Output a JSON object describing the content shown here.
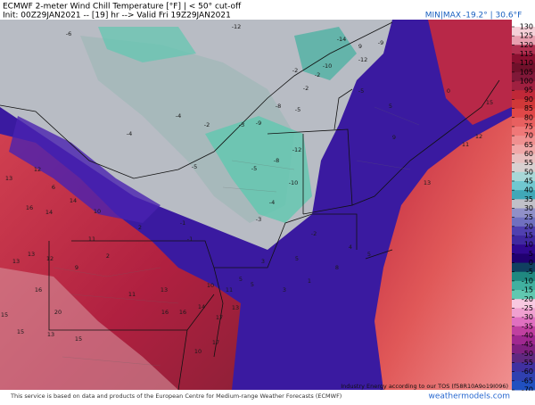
{
  "header": {
    "title": "ECMWF 2-meter Wind Chill Temperature [°F] | < 50° cut-off",
    "init": "Init: 00Z29JAN2021 -- [19] hr --> Valid Fri 19Z29JAN2021",
    "minmax_label": "MIN|MAX",
    "minmax_values": "-19.2° | 30.6°F"
  },
  "map": {
    "labels": [
      "-12",
      "-14",
      "-6",
      "9",
      "-12",
      "-9",
      "-10",
      "-2",
      "-2",
      "-2",
      "-5",
      "0",
      "15",
      "5",
      "-8",
      "-5",
      "-9",
      "-4",
      "-4",
      "-2",
      "-3",
      "-12",
      "-8",
      "-10",
      "-5",
      "-5",
      "9",
      "12",
      "11",
      "13",
      "12",
      "13",
      "6",
      "16",
      "14",
      "14",
      "10",
      "-1",
      "-1",
      "2",
      "-3",
      "-4",
      "-2",
      "5",
      "8",
      "5",
      "3",
      "12",
      "13",
      "13",
      "11",
      "9",
      "2",
      "11",
      "13",
      "16",
      "16",
      "14",
      "17",
      "11",
      "17",
      "20",
      "16",
      "15",
      "13",
      "15",
      "15",
      "10",
      "13",
      "5",
      "5",
      "3",
      "1",
      "4",
      "10"
    ],
    "tos_note": "Industry Energy according to our TOS (f58R10A9o19I096)"
  },
  "colorbar": {
    "ticks": [
      130,
      125,
      120,
      115,
      110,
      105,
      100,
      95,
      90,
      85,
      80,
      75,
      70,
      65,
      60,
      55,
      50,
      45,
      40,
      35,
      30,
      25,
      20,
      15,
      10,
      5,
      0,
      -5,
      -10,
      -15,
      -20,
      -25,
      -30,
      -35,
      -40,
      -45,
      -50,
      -55,
      -60,
      -65,
      -70
    ],
    "colors": [
      "#f5d0d8",
      "#e8a0b0",
      "#b03050",
      "#8a1030",
      "#70102a",
      "#801838",
      "#a02040",
      "#c02838",
      "#d03838",
      "#e04848",
      "#e86060",
      "#f07878",
      "#f09090",
      "#f0a8a8",
      "#e8c0c0",
      "#d8d0d0",
      "#a8d8d8",
      "#70c8d0",
      "#40a8b8",
      "#c0c0c8",
      "#9090c8",
      "#7070c0",
      "#5040b0",
      "#4028a0",
      "#300890",
      "#200070",
      "#104060",
      "#208880",
      "#40b0a0",
      "#60c8b0",
      "#f8c8e0",
      "#f0a0d0",
      "#e070c0",
      "#c040a0",
      "#a02890",
      "#802080",
      "#602880",
      "#4030a0",
      "#3040b0",
      "#2050c0"
    ]
  },
  "footer": {
    "notice": "This service is based on data and products of the European Centre for Medium-range Weather Forecasts (ECMWF)",
    "site": "weathermodels.com"
  }
}
